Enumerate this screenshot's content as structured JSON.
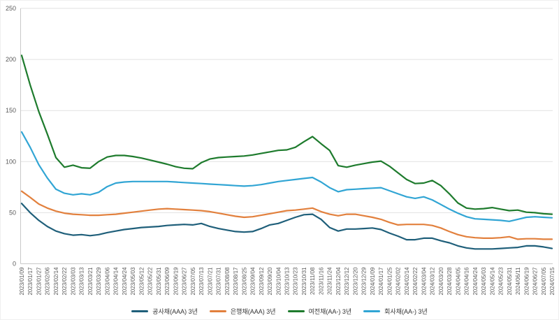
{
  "chart_data": {
    "type": "line",
    "title": "",
    "xlabel": "",
    "ylabel": "",
    "ylim": [
      0,
      250
    ],
    "yticks": [
      0,
      50,
      100,
      150,
      200,
      250
    ],
    "grid": "horizontal",
    "legend_position": "bottom",
    "categories": [
      "2023/01/09",
      "2023/01/17",
      "2023/01/27",
      "2023/02/06",
      "2023/02/14",
      "2023/02/22",
      "2023/03/03",
      "2023/03/13",
      "2023/03/21",
      "2023/03/29",
      "2023/04/06",
      "2023/04/14",
      "2023/04/24",
      "2023/05/03",
      "2023/05/12",
      "2023/05/22",
      "2023/05/31",
      "2023/06/09",
      "2023/06/19",
      "2023/06/27",
      "2023/07/05",
      "2023/07/13",
      "2023/07/21",
      "2023/07/31",
      "2023/08/08",
      "2023/08/17",
      "2023/08/25",
      "2023/09/04",
      "2023/09/12",
      "2023/09/20",
      "2023/10/04",
      "2023/10/13",
      "2023/10/23",
      "2023/10/31",
      "2023/11/08",
      "2023/11/16",
      "2023/11/24",
      "2023/12/04",
      "2023/12/12",
      "2023/12/20",
      "2023/12/29",
      "2024/01/09",
      "2024/01/17",
      "2024/01/25",
      "2024/02/02",
      "2024/02/14",
      "2024/02/22",
      "2024/03/04",
      "2024/03/12",
      "2024/03/20",
      "2024/03/28",
      "2024/04/05",
      "2024/04/16",
      "2024/04/24",
      "2024/05/03",
      "2024/05/14",
      "2024/05/23",
      "2024/05/31",
      "2024/06/11",
      "2024/06/19",
      "2024/06/27",
      "2024/07/05",
      "2024/07/15"
    ],
    "series": [
      {
        "name": "공사채(AAA) 3년",
        "color": "#1f5f7a",
        "values": [
          59,
          50,
          42.5,
          36.5,
          32,
          29.5,
          28,
          28.5,
          27.5,
          28.5,
          30.5,
          32,
          33.5,
          34.5,
          35.5,
          36,
          36.5,
          37.5,
          38,
          38.5,
          38,
          39.5,
          36.5,
          34.5,
          33,
          31.5,
          31,
          31.5,
          34.5,
          38,
          39.5,
          42.5,
          45.5,
          48,
          48.5,
          43.5,
          35.5,
          32,
          34,
          34,
          34.5,
          35,
          33.5,
          30,
          27,
          23.5,
          23.5,
          25,
          25,
          22.5,
          20.5,
          17.5,
          15.5,
          14.5,
          14.5,
          14.5,
          15,
          15.5,
          16,
          17.5,
          17.5,
          16.5,
          15
        ]
      },
      {
        "name": "은행채(AAA) 3년",
        "color": "#e2803d",
        "values": [
          71,
          65,
          58.5,
          54.5,
          51.5,
          49.5,
          48.5,
          48,
          47.5,
          47.5,
          48,
          48.5,
          49.5,
          50.5,
          51.5,
          52.5,
          53.5,
          54,
          53.5,
          53,
          52.5,
          52,
          51,
          49.5,
          48,
          46.5,
          45.5,
          46,
          47.5,
          49,
          50.5,
          52,
          52.5,
          53.5,
          54.5,
          51,
          48.5,
          47,
          48.5,
          48.5,
          47,
          45.5,
          43.5,
          40.5,
          38,
          38.5,
          38.5,
          38.5,
          37.5,
          35,
          31.5,
          28.5,
          26.5,
          25.5,
          25,
          25,
          25.5,
          26.5,
          24,
          24.5,
          24.5,
          24,
          24
        ]
      },
      {
        "name": "여전채(AA-) 3년",
        "color": "#1e7b2d",
        "values": [
          204,
          175,
          149,
          127,
          104,
          94.5,
          96.5,
          94,
          93.5,
          100,
          104.5,
          106,
          106,
          105,
          103.5,
          101.5,
          99.5,
          97.5,
          95,
          93.5,
          93,
          99,
          102.5,
          104,
          104.5,
          105,
          105.5,
          106.5,
          108,
          109.5,
          111,
          111.5,
          114,
          119.5,
          124.5,
          117.5,
          111,
          96,
          94.5,
          96.5,
          98,
          99.5,
          100.5,
          95.5,
          89,
          82.5,
          78.5,
          79,
          81.5,
          76.5,
          68.5,
          59.5,
          54.5,
          53.5,
          54,
          55,
          53.5,
          52,
          52.5,
          50.5,
          50,
          49,
          48.5
        ]
      },
      {
        "name": "회사채(AA-) 3년",
        "color": "#31a5d4",
        "values": [
          129,
          114,
          97,
          84,
          73,
          69,
          67.5,
          68.5,
          67.5,
          70,
          75.5,
          79,
          80,
          80.5,
          80.5,
          80.5,
          80.5,
          80.5,
          80,
          79.5,
          79,
          78.5,
          78,
          77.5,
          77,
          76.5,
          76,
          76.5,
          77.5,
          79,
          80.5,
          81.5,
          82.5,
          83.5,
          84.5,
          80,
          74.5,
          70.5,
          72.5,
          73,
          73.5,
          74,
          74.5,
          71.5,
          68.5,
          65.5,
          64,
          65.5,
          62.5,
          58,
          53.5,
          49.5,
          46,
          44,
          43.5,
          43,
          42.5,
          41.5,
          43.5,
          45.5,
          46,
          45.5,
          45
        ]
      }
    ],
    "colors": {
      "grid": "#e2e2e2",
      "axis": "#c8c8c8",
      "tick_text": "#595959",
      "legend_text": "#333333",
      "background": "#ffffff"
    }
  }
}
